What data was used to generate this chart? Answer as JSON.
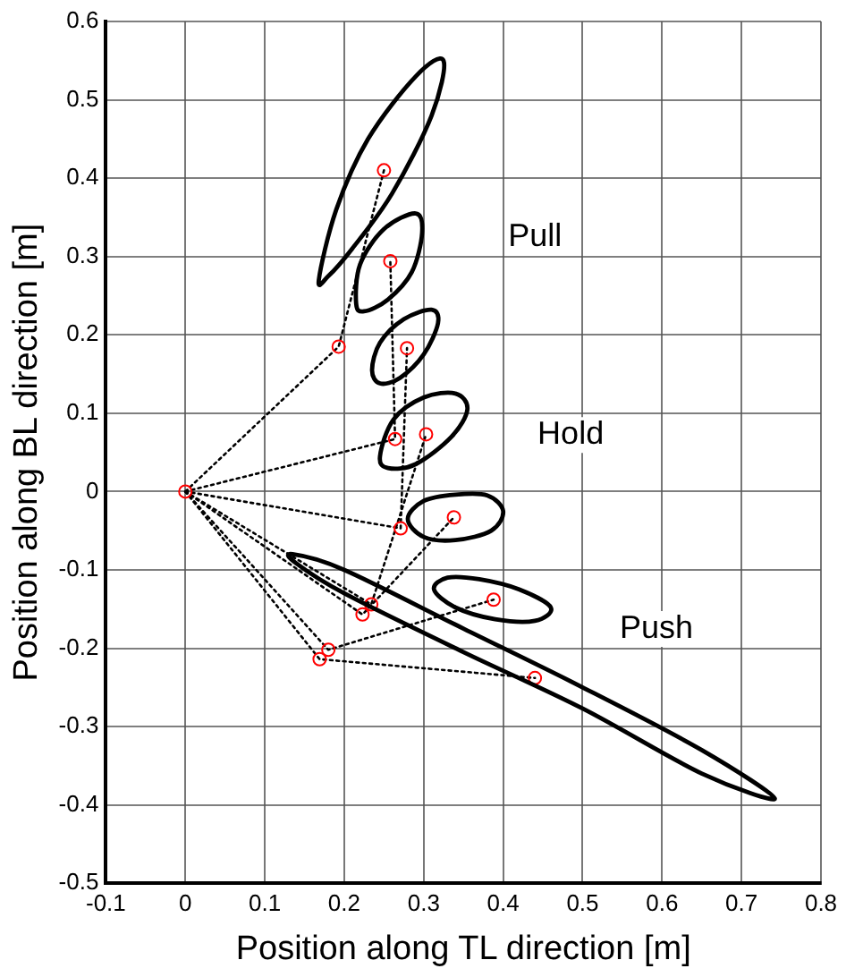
{
  "chart_data": {
    "type": "line",
    "xlabel": "Position along TL direction [m]",
    "ylabel": "Position along BL direction [m]",
    "xlim": [
      -0.1,
      0.8
    ],
    "xticks": [
      -0.1,
      0,
      0.1,
      0.2,
      0.3,
      0.4,
      0.5,
      0.6,
      0.7,
      0.8
    ],
    "ylim": [
      -0.5,
      0.6
    ],
    "yticks": [
      -0.5,
      -0.4,
      -0.3,
      -0.2,
      -0.1,
      0,
      0.1,
      0.2,
      0.3,
      0.4,
      0.5,
      0.6
    ],
    "grid": true,
    "legend": false,
    "annotations": [
      "Pull",
      "Hold",
      "Push"
    ],
    "series": [
      {
        "type": "line",
        "color": "#000000",
        "line_style": "dotted",
        "marker": "none",
        "x": [
          0,
          0.193,
          0.25
        ],
        "values": [
          0,
          0.185,
          0.41
        ]
      },
      {
        "type": "line",
        "color": "#000000",
        "line_style": "dotted",
        "marker": "none",
        "x": [
          0,
          0.264,
          0.258
        ],
        "values": [
          0,
          0.067,
          0.294
        ]
      },
      {
        "type": "line",
        "color": "#000000",
        "line_style": "dotted",
        "marker": "none",
        "x": [
          0,
          0.271,
          0.279
        ],
        "values": [
          0,
          -0.047,
          0.183
        ]
      },
      {
        "type": "line",
        "color": "#000000",
        "line_style": "dotted",
        "marker": "none",
        "x": [
          0,
          0.234,
          0.303
        ],
        "values": [
          0,
          -0.144,
          0.073
        ]
      },
      {
        "type": "line",
        "color": "#000000",
        "line_style": "dotted",
        "marker": "none",
        "x": [
          0,
          0.223,
          0.338
        ],
        "values": [
          0,
          -0.157,
          -0.033
        ]
      },
      {
        "type": "line",
        "color": "#000000",
        "line_style": "dotted",
        "marker": "none",
        "x": [
          0,
          0.18,
          0.388
        ],
        "values": [
          0,
          -0.202,
          -0.138
        ]
      },
      {
        "type": "line",
        "color": "#000000",
        "line_style": "dotted",
        "marker": "none",
        "x": [
          0,
          0.169,
          0.44
        ],
        "values": [
          0,
          -0.214,
          -0.238
        ]
      },
      {
        "type": "scatter",
        "color": "#ff0000",
        "marker": "circle",
        "x": [
          0,
          0.193,
          0.25,
          0.264,
          0.258,
          0.271,
          0.279,
          0.234,
          0.303,
          0.223,
          0.338,
          0.18,
          0.388,
          0.169,
          0.44
        ],
        "values": [
          0,
          0.185,
          0.41,
          0.067,
          0.294,
          -0.047,
          0.183,
          -0.144,
          0.073,
          -0.157,
          -0.033,
          -0.202,
          -0.138,
          -0.214,
          -0.238
        ]
      }
    ]
  }
}
